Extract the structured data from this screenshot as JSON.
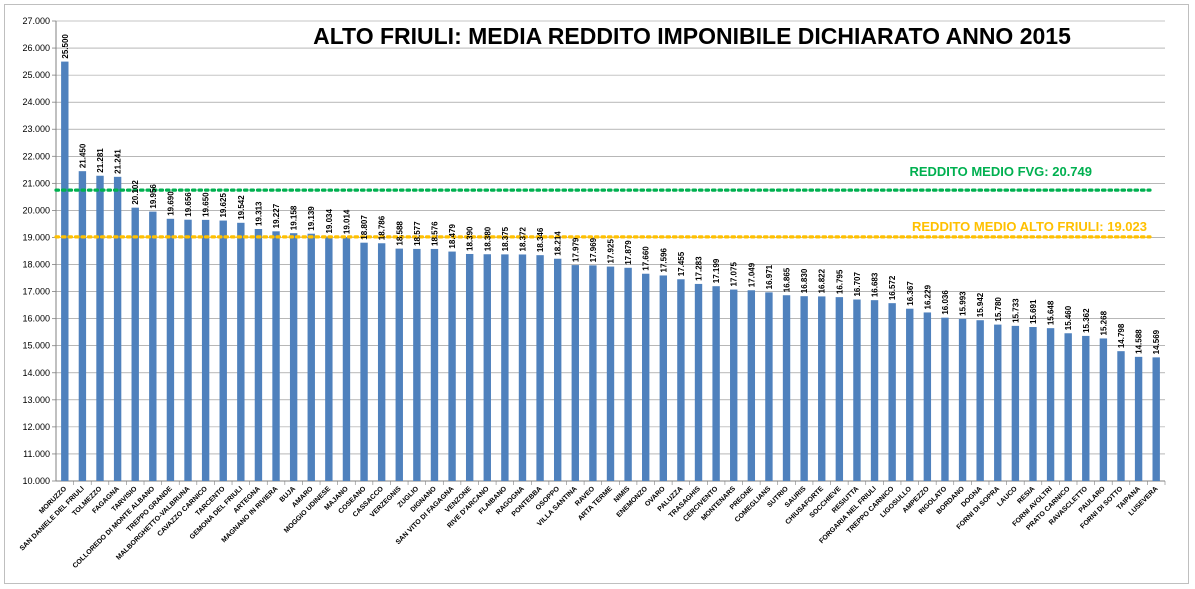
{
  "chart_data": {
    "type": "bar",
    "title": "ALTO FRIULI: MEDIA REDDITO IMPONIBILE DICHIARATO ANNO 2015",
    "xlabel": "",
    "ylabel": "",
    "ylim": [
      10000,
      27000
    ],
    "ytick_step": 1000,
    "ytick_labels": [
      "10.000",
      "11.000",
      "12.000",
      "13.000",
      "14.000",
      "15.000",
      "16.000",
      "17.000",
      "18.000",
      "19.000",
      "20.000",
      "21.000",
      "22.000",
      "23.000",
      "24.000",
      "25.000",
      "26.000",
      "27.000"
    ],
    "grid": true,
    "bar_color": "#4f81bd",
    "categories": [
      "MORUZZO",
      "SAN DANIELE DEL FRIULI",
      "TOLMEZZO",
      "FAGAGNA",
      "TARVISIO",
      "COLLOREDO DI MONTE ALBANO",
      "TREPPO GRANDE",
      "MALBORGHETTO-VALBRUNA",
      "CAVAZZO CARNICO",
      "TARCENTO",
      "GEMONA DEL FRIULI",
      "ARTEGNA",
      "MAGNANO IN RIVIERA",
      "BUJA",
      "AMARO",
      "MOGGIO UDINESE",
      "MAJANO",
      "COSEANO",
      "CASSACCO",
      "VERZEGNIS",
      "ZUGLIO",
      "DIGNANO",
      "SAN VITO DI FAGAGNA",
      "VENZONE",
      "RIVE D'ARCANO",
      "FLAIBANO",
      "RAGOGNA",
      "PONTEBBA",
      "OSOPPO",
      "VILLA SANTINA",
      "RAVEO",
      "ARTA TERME",
      "NIMIS",
      "ENEMONZO",
      "OVARO",
      "PALUZZA",
      "TRASAGHIS",
      "CERCIVENTO",
      "MONTENARS",
      "PREONE",
      "COMEGLIANS",
      "SUTRIO",
      "SAURIS",
      "CHIUSAFORTE",
      "SOCCHIEVE",
      "RESIUTTA",
      "FORGARIA NEL FRIULI",
      "TREPPO CARNICO",
      "LIGOSULLO",
      "AMPEZZO",
      "RIGOLATO",
      "BORDANO",
      "DOGNA",
      "FORNI DI SOPRA",
      "LAUCO",
      "RESIA",
      "FORNI AVOLTRI",
      "PRATO CARNICO",
      "RAVASCLETTO",
      "PAULARO",
      "FORNI DI SOTTO",
      "TAIPANA",
      "LUSEVERA"
    ],
    "values": [
      25500,
      21450,
      21281,
      21241,
      20102,
      19956,
      19690,
      19656,
      19650,
      19625,
      19542,
      19313,
      19227,
      19158,
      19139,
      19034,
      19014,
      18807,
      18786,
      18588,
      18577,
      18576,
      18479,
      18390,
      18380,
      18375,
      18372,
      18346,
      18214,
      17979,
      17969,
      17925,
      17879,
      17660,
      17596,
      17455,
      17283,
      17199,
      17075,
      17049,
      16971,
      16865,
      16830,
      16822,
      16795,
      16707,
      16683,
      16572,
      16367,
      16229,
      16036,
      15993,
      15942,
      15780,
      15733,
      15691,
      15648,
      15460,
      15362,
      15268,
      14798,
      14588,
      14569
    ],
    "value_labels": [
      "25.500",
      "21.450",
      "21.281",
      "21.241",
      "20.102",
      "19.956",
      "19.690",
      "19.656",
      "19.650",
      "19.625",
      "19.542",
      "19.313",
      "19.227",
      "19.158",
      "19.139",
      "19.034",
      "19.014",
      "18.807",
      "18.786",
      "18.588",
      "18.577",
      "18.576",
      "18.479",
      "18.390",
      "18.380",
      "18.375",
      "18.372",
      "18.346",
      "18.214",
      "17.979",
      "17.969",
      "17.925",
      "17.879",
      "17.660",
      "17.596",
      "17.455",
      "17.283",
      "17.199",
      "17.075",
      "17.049",
      "16.971",
      "16.865",
      "16.830",
      "16.822",
      "16.795",
      "16.707",
      "16.683",
      "16.572",
      "16.367",
      "16.229",
      "16.036",
      "15.993",
      "15.942",
      "15.780",
      "15.733",
      "15.691",
      "15.648",
      "15.460",
      "15.362",
      "15.268",
      "14.798",
      "14.588",
      "14.569"
    ],
    "reference_lines": [
      {
        "label": "REDDITO MEDIO FVG: 20.749",
        "value": 20749,
        "color": "#00b050"
      },
      {
        "label": "REDDITO MEDIO ALTO FRIULI: 19.023",
        "value": 19023,
        "color": "#ffc000"
      }
    ]
  }
}
